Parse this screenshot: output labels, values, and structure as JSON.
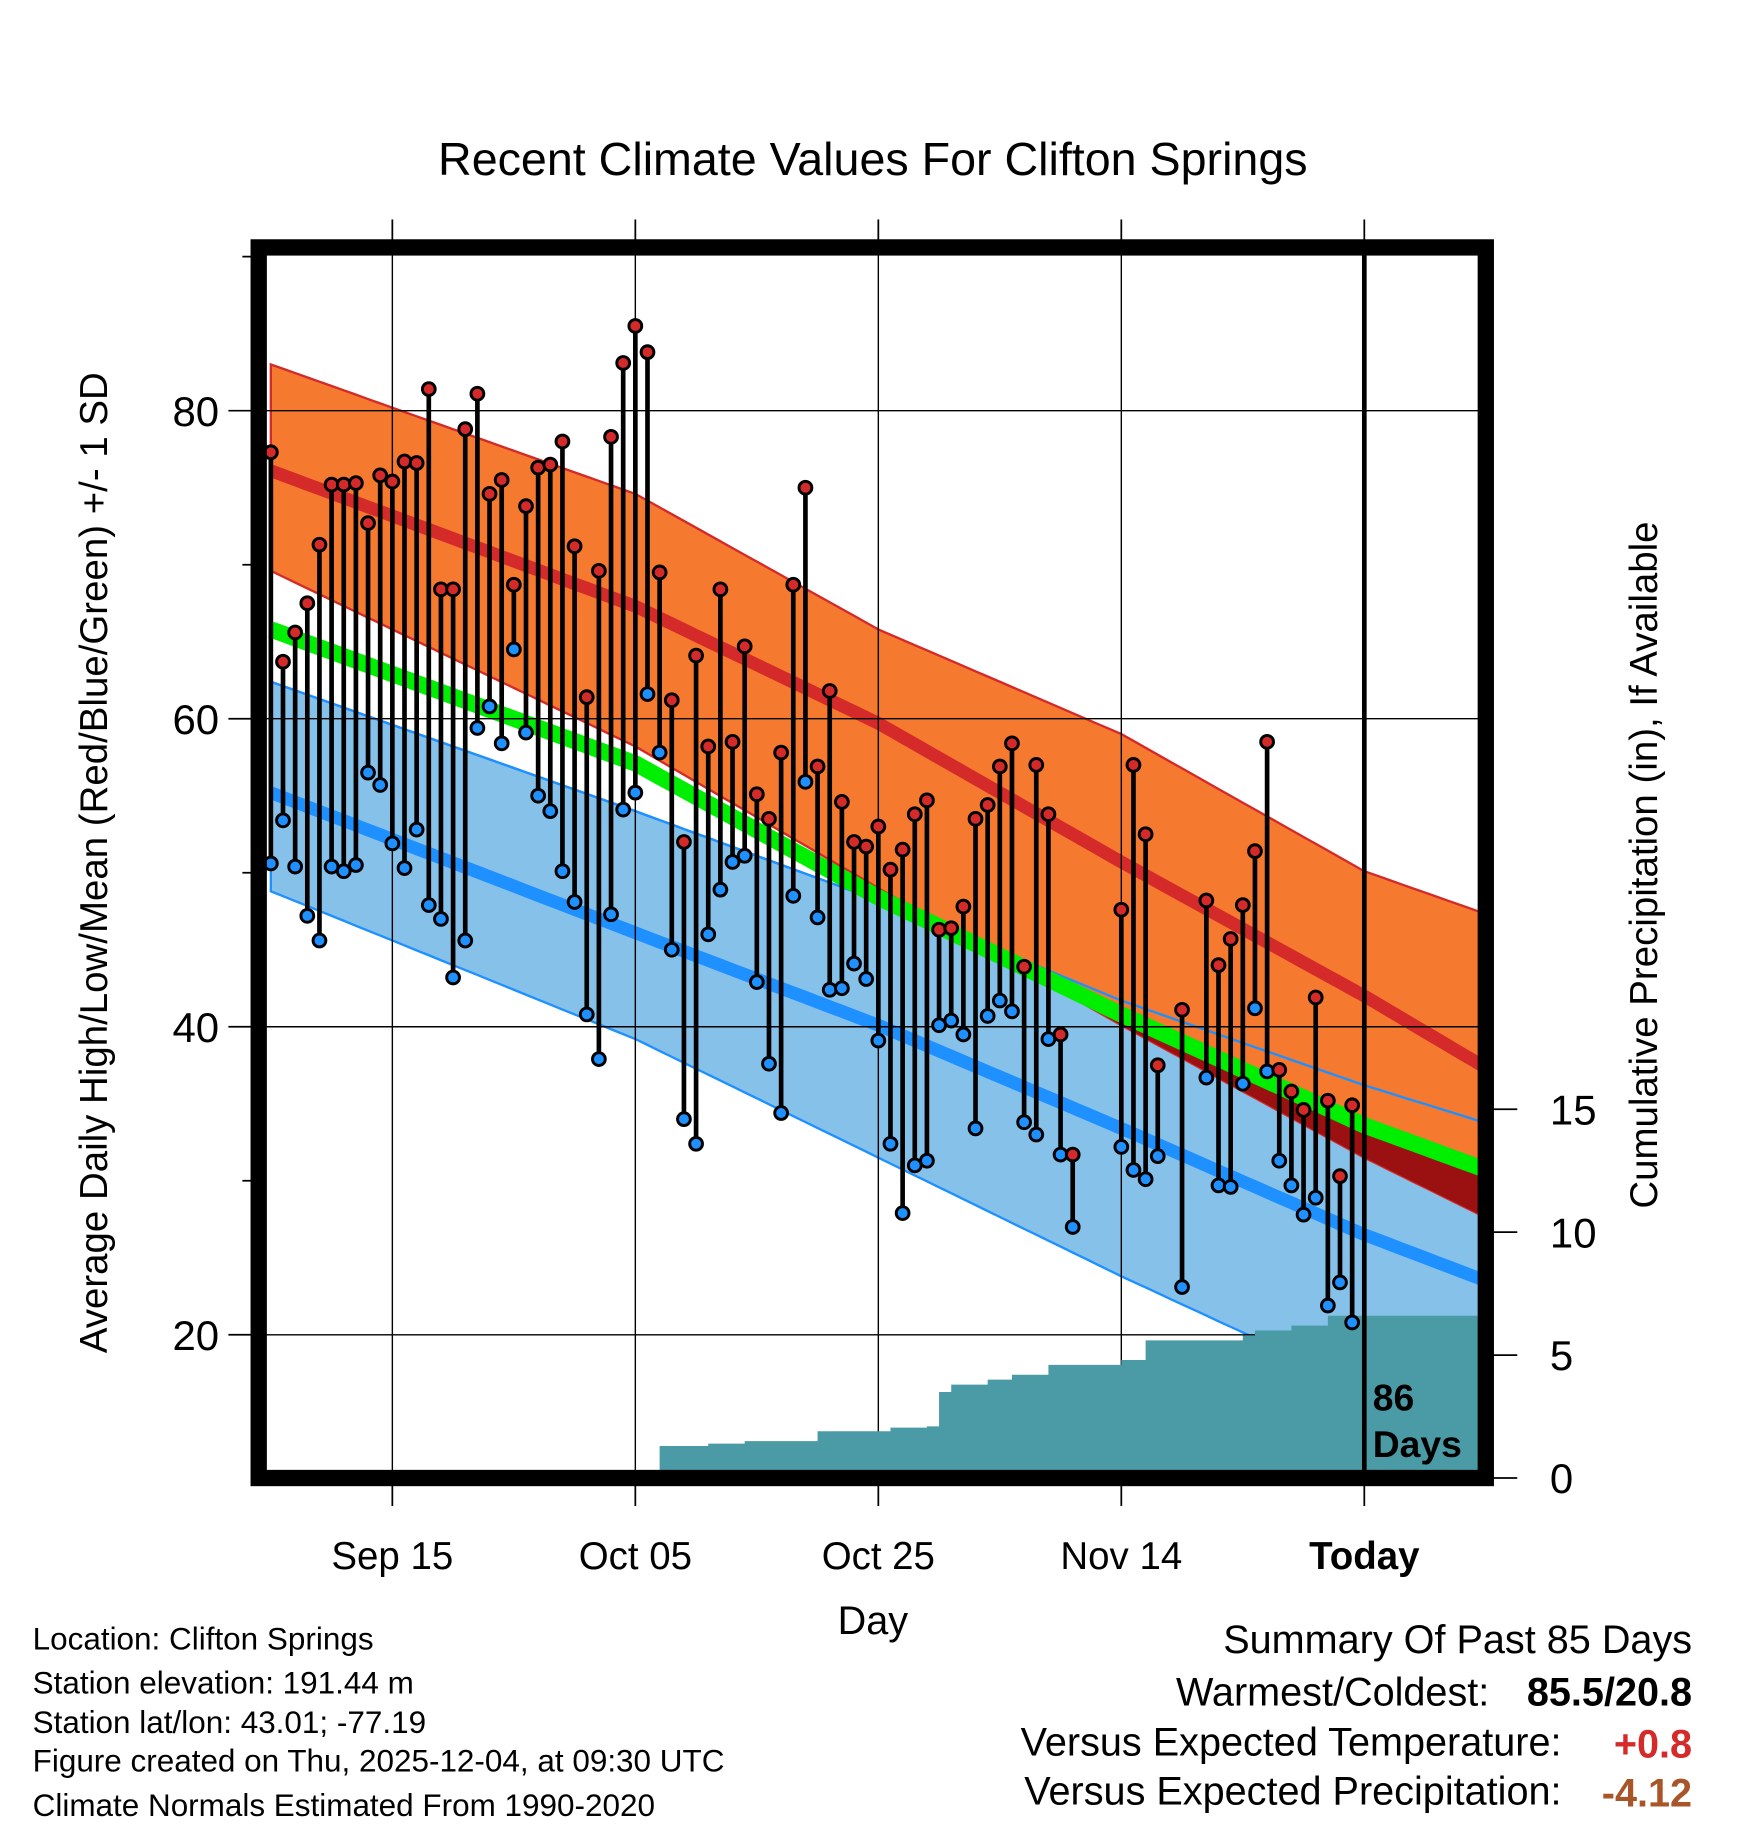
{
  "chart_data": {
    "type": "line",
    "title": "Recent Climate Values For Clifton Springs",
    "xlabel": "Day",
    "ylabel": "Average Daily High/Low/Mean (Red/Blue/Green) +/- 1 SD",
    "y2label": "Cumulative Precipitation (in), If Available",
    "start_date": "2025-09-05",
    "xlim": [
      -1,
      100
    ],
    "ylim": [
      10.7,
      90.6
    ],
    "y2lim": [
      0,
      38
    ],
    "yticks": [
      20,
      40,
      60,
      80
    ],
    "y2ticks": [
      0,
      5,
      10,
      15
    ],
    "xticks": [
      {
        "day": 10,
        "label": "Sep 15"
      },
      {
        "day": 30,
        "label": "Oct 05"
      },
      {
        "day": 50,
        "label": "Oct 25"
      },
      {
        "day": 70,
        "label": "Nov 14"
      },
      {
        "day": 90,
        "label": "Today"
      }
    ],
    "today_label": [
      "86",
      "Days"
    ],
    "grid": true,
    "colors": {
      "high": "#d42a2a",
      "low": "#1e90ff",
      "mean": "#00ee00",
      "high_band": "#f5792e",
      "low_band": "#85c1e9",
      "overlap": "#9b1010",
      "precip": "#4a9ba5"
    },
    "normals": {
      "days": [
        0,
        30,
        50,
        70,
        90,
        99
      ],
      "high_mean": [
        76.1,
        67.3,
        59.7,
        50.7,
        42.0,
        37.8
      ],
      "high_upper": [
        83.0,
        74.6,
        65.8,
        59.0,
        50.1,
        47.6
      ],
      "high_lower": [
        69.6,
        58.2,
        49.0,
        40.1,
        31.5,
        28.0
      ],
      "mean": [
        65.8,
        57.1,
        48.4,
        40.8,
        33.6,
        31.0
      ],
      "low_mean": [
        55.2,
        46.1,
        40.1,
        33.4,
        26.5,
        23.8
      ],
      "low_upper": [
        62.4,
        54.0,
        48.2,
        41.7,
        36.2,
        34.0
      ],
      "low_lower": [
        48.8,
        39.2,
        31.5,
        23.8,
        16.5,
        13.5
      ]
    },
    "observations": {
      "days": [
        0,
        1,
        2,
        3,
        4,
        5,
        6,
        7,
        8,
        9,
        10,
        11,
        12,
        13,
        14,
        15,
        16,
        17,
        18,
        19,
        20,
        21,
        22,
        23,
        24,
        25,
        26,
        27,
        28,
        29,
        30,
        31,
        32,
        33,
        34,
        35,
        36,
        37,
        38,
        39,
        40,
        41,
        42,
        43,
        44,
        45,
        46,
        47,
        48,
        49,
        50,
        51,
        52,
        53,
        54,
        55,
        56,
        57,
        58,
        59,
        60,
        61,
        62,
        63,
        64,
        65,
        66,
        70,
        71,
        72,
        73,
        75,
        77,
        78,
        79,
        80,
        81,
        82,
        83,
        84,
        85,
        86,
        87,
        88,
        89
      ],
      "high": [
        77.3,
        63.7,
        65.6,
        67.5,
        71.3,
        75.2,
        75.2,
        75.3,
        72.7,
        75.8,
        75.4,
        76.7,
        76.6,
        81.4,
        68.4,
        68.4,
        78.8,
        81.1,
        74.6,
        75.5,
        68.7,
        73.8,
        76.3,
        76.5,
        78.0,
        71.2,
        61.4,
        69.6,
        78.3,
        83.1,
        85.5,
        83.8,
        69.5,
        61.2,
        52.0,
        64.1,
        58.2,
        68.4,
        58.5,
        64.7,
        55.1,
        53.5,
        57.8,
        68.7,
        75.0,
        56.9,
        61.8,
        54.6,
        52.0,
        51.7,
        53.0,
        50.2,
        51.5,
        53.8,
        54.7,
        46.3,
        46.4,
        47.8,
        53.5,
        54.4,
        56.9,
        58.4,
        43.9,
        57.0,
        53.8,
        39.5,
        31.7,
        47.6,
        57.0,
        52.5,
        37.5,
        41.1,
        48.2,
        44.0,
        45.7,
        47.9,
        51.4,
        58.5,
        37.2,
        35.8,
        34.6,
        41.9,
        35.2,
        30.3,
        34.9
      ],
      "low": [
        50.6,
        53.4,
        50.4,
        47.2,
        45.6,
        50.4,
        50.1,
        50.5,
        56.5,
        55.7,
        51.9,
        50.3,
        52.8,
        47.9,
        47.0,
        43.2,
        45.6,
        59.4,
        60.8,
        58.4,
        64.5,
        59.1,
        55.0,
        54.0,
        50.1,
        48.1,
        40.8,
        37.9,
        47.3,
        54.1,
        55.2,
        61.6,
        57.8,
        45.0,
        34.0,
        32.4,
        46.0,
        48.9,
        50.7,
        51.1,
        42.9,
        37.6,
        34.4,
        48.5,
        55.9,
        47.1,
        42.4,
        42.5,
        44.1,
        43.1,
        39.1,
        32.4,
        27.9,
        31.0,
        31.3,
        40.1,
        40.4,
        39.5,
        33.4,
        40.7,
        41.7,
        41.0,
        33.8,
        33.0,
        39.2,
        31.7,
        27.0,
        32.2,
        30.7,
        30.1,
        31.6,
        23.1,
        36.7,
        29.7,
        29.6,
        36.3,
        41.2,
        37.1,
        31.3,
        29.7,
        27.8,
        28.9,
        21.9,
        23.4,
        20.8
      ]
    },
    "precip_cumulative": {
      "days": [
        -1,
        20,
        32,
        36,
        39,
        45,
        51,
        54,
        55,
        56,
        59,
        61,
        64,
        70,
        72,
        80,
        81,
        84,
        87,
        100
      ],
      "values": [
        0,
        0.1,
        1.3,
        1.4,
        1.5,
        1.9,
        2.05,
        2.1,
        3.5,
        3.8,
        4.0,
        4.2,
        4.6,
        4.8,
        5.6,
        5.8,
        6.0,
        6.2,
        6.6,
        6.6
      ]
    }
  },
  "footer": {
    "location": "Location: Clifton Springs",
    "elevation": "Station elevation: 191.44 m",
    "latlon": "Station lat/lon: 43.01; -77.19",
    "created": "Figure created on Thu, 2025-12-04, at 09:30 UTC",
    "normals": "Climate Normals Estimated From 1990-2020"
  },
  "summary": {
    "title": "Summary Of Past 85 Days",
    "warmest_label": "Warmest/Coldest:",
    "warmest_value": "85.5/20.8",
    "temp_label": "Versus Expected Temperature:",
    "temp_value": "+0.8",
    "temp_color": "#d42a2a",
    "precip_label": "Versus Expected Precipitation:",
    "precip_value": "-4.12",
    "precip_color": "#a8552a"
  }
}
